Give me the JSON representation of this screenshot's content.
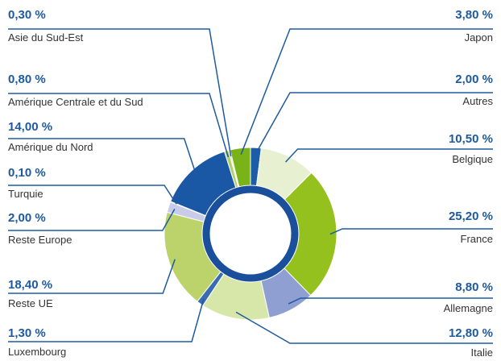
{
  "chart_data": {
    "type": "donut",
    "categories": [
      "Autres",
      "Belgique",
      "France",
      "Allemagne",
      "Italie",
      "Luxembourg",
      "Reste UE",
      "Reste Europe",
      "Turquie",
      "Amérique du Nord",
      "Amérique Centrale et du Sud",
      "Asie du Sud-Est",
      "Japon"
    ],
    "values": [
      2.0,
      10.5,
      25.2,
      8.8,
      12.8,
      1.3,
      18.4,
      2.0,
      0.1,
      14.0,
      0.8,
      0.3,
      3.8
    ],
    "value_labels": [
      "2,00 %",
      "10,50 %",
      "25,20 %",
      "8,80 %",
      "12,80 %",
      "1,30 %",
      "18,40 %",
      "2,00 %",
      "0,10 %",
      "14,00 %",
      "0,80 %",
      "0,30 %",
      "3,80 %"
    ],
    "colors": [
      "#1d5ca8",
      "#e8f0d2",
      "#95c11f",
      "#8f9fd1",
      "#d7e7a9",
      "#3a6cb3",
      "#bcd36b",
      "#c9cce8",
      "#1d5ca8",
      "#1a58a6",
      "#b2cf6e",
      "#dde9bb",
      "#7ab317"
    ]
  }
}
